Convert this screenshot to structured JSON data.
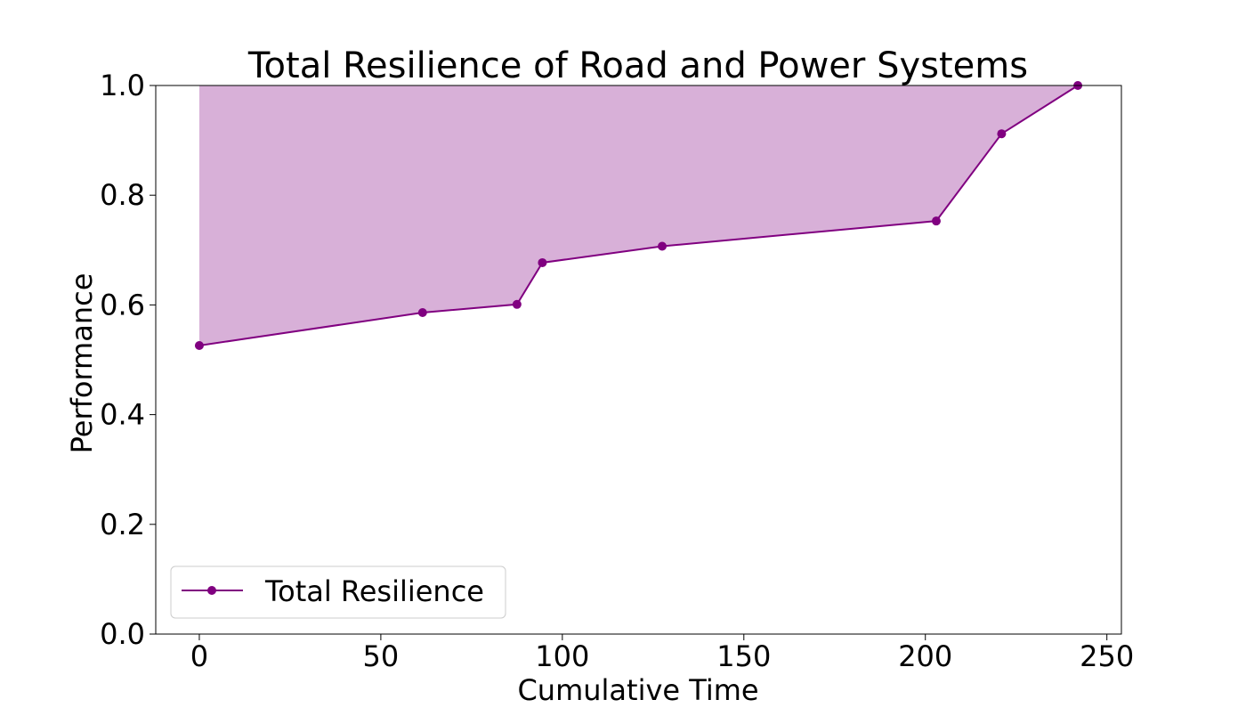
{
  "chart_data": {
    "type": "area",
    "title": "Total Resilience of Road and Power Systems",
    "xlabel": "Cumulative Time",
    "ylabel": "Performance",
    "xlim": [
      -12,
      254
    ],
    "ylim": [
      0.0,
      1.0
    ],
    "x_ticks": [
      0,
      50,
      100,
      150,
      200,
      250
    ],
    "y_ticks": [
      0.0,
      0.2,
      0.4,
      0.6,
      0.8,
      1.0
    ],
    "x_tick_labels": [
      "0",
      "50",
      "100",
      "150",
      "200",
      "250"
    ],
    "y_tick_labels": [
      "0.0",
      "0.2",
      "0.4",
      "0.6",
      "0.8",
      "1.0"
    ],
    "grid": false,
    "legend_position": "lower-left",
    "series": [
      {
        "name": "Total Resilience",
        "color": "#800080",
        "marker": "circle",
        "x": [
          0,
          61.5,
          87.5,
          94.5,
          127.5,
          203,
          221,
          242
        ],
        "y": [
          0.526,
          0.586,
          0.601,
          0.677,
          0.707,
          0.753,
          0.912,
          1.0
        ]
      }
    ],
    "fill": {
      "between": "series-and-1.0",
      "color": "#d8b0d8"
    }
  }
}
